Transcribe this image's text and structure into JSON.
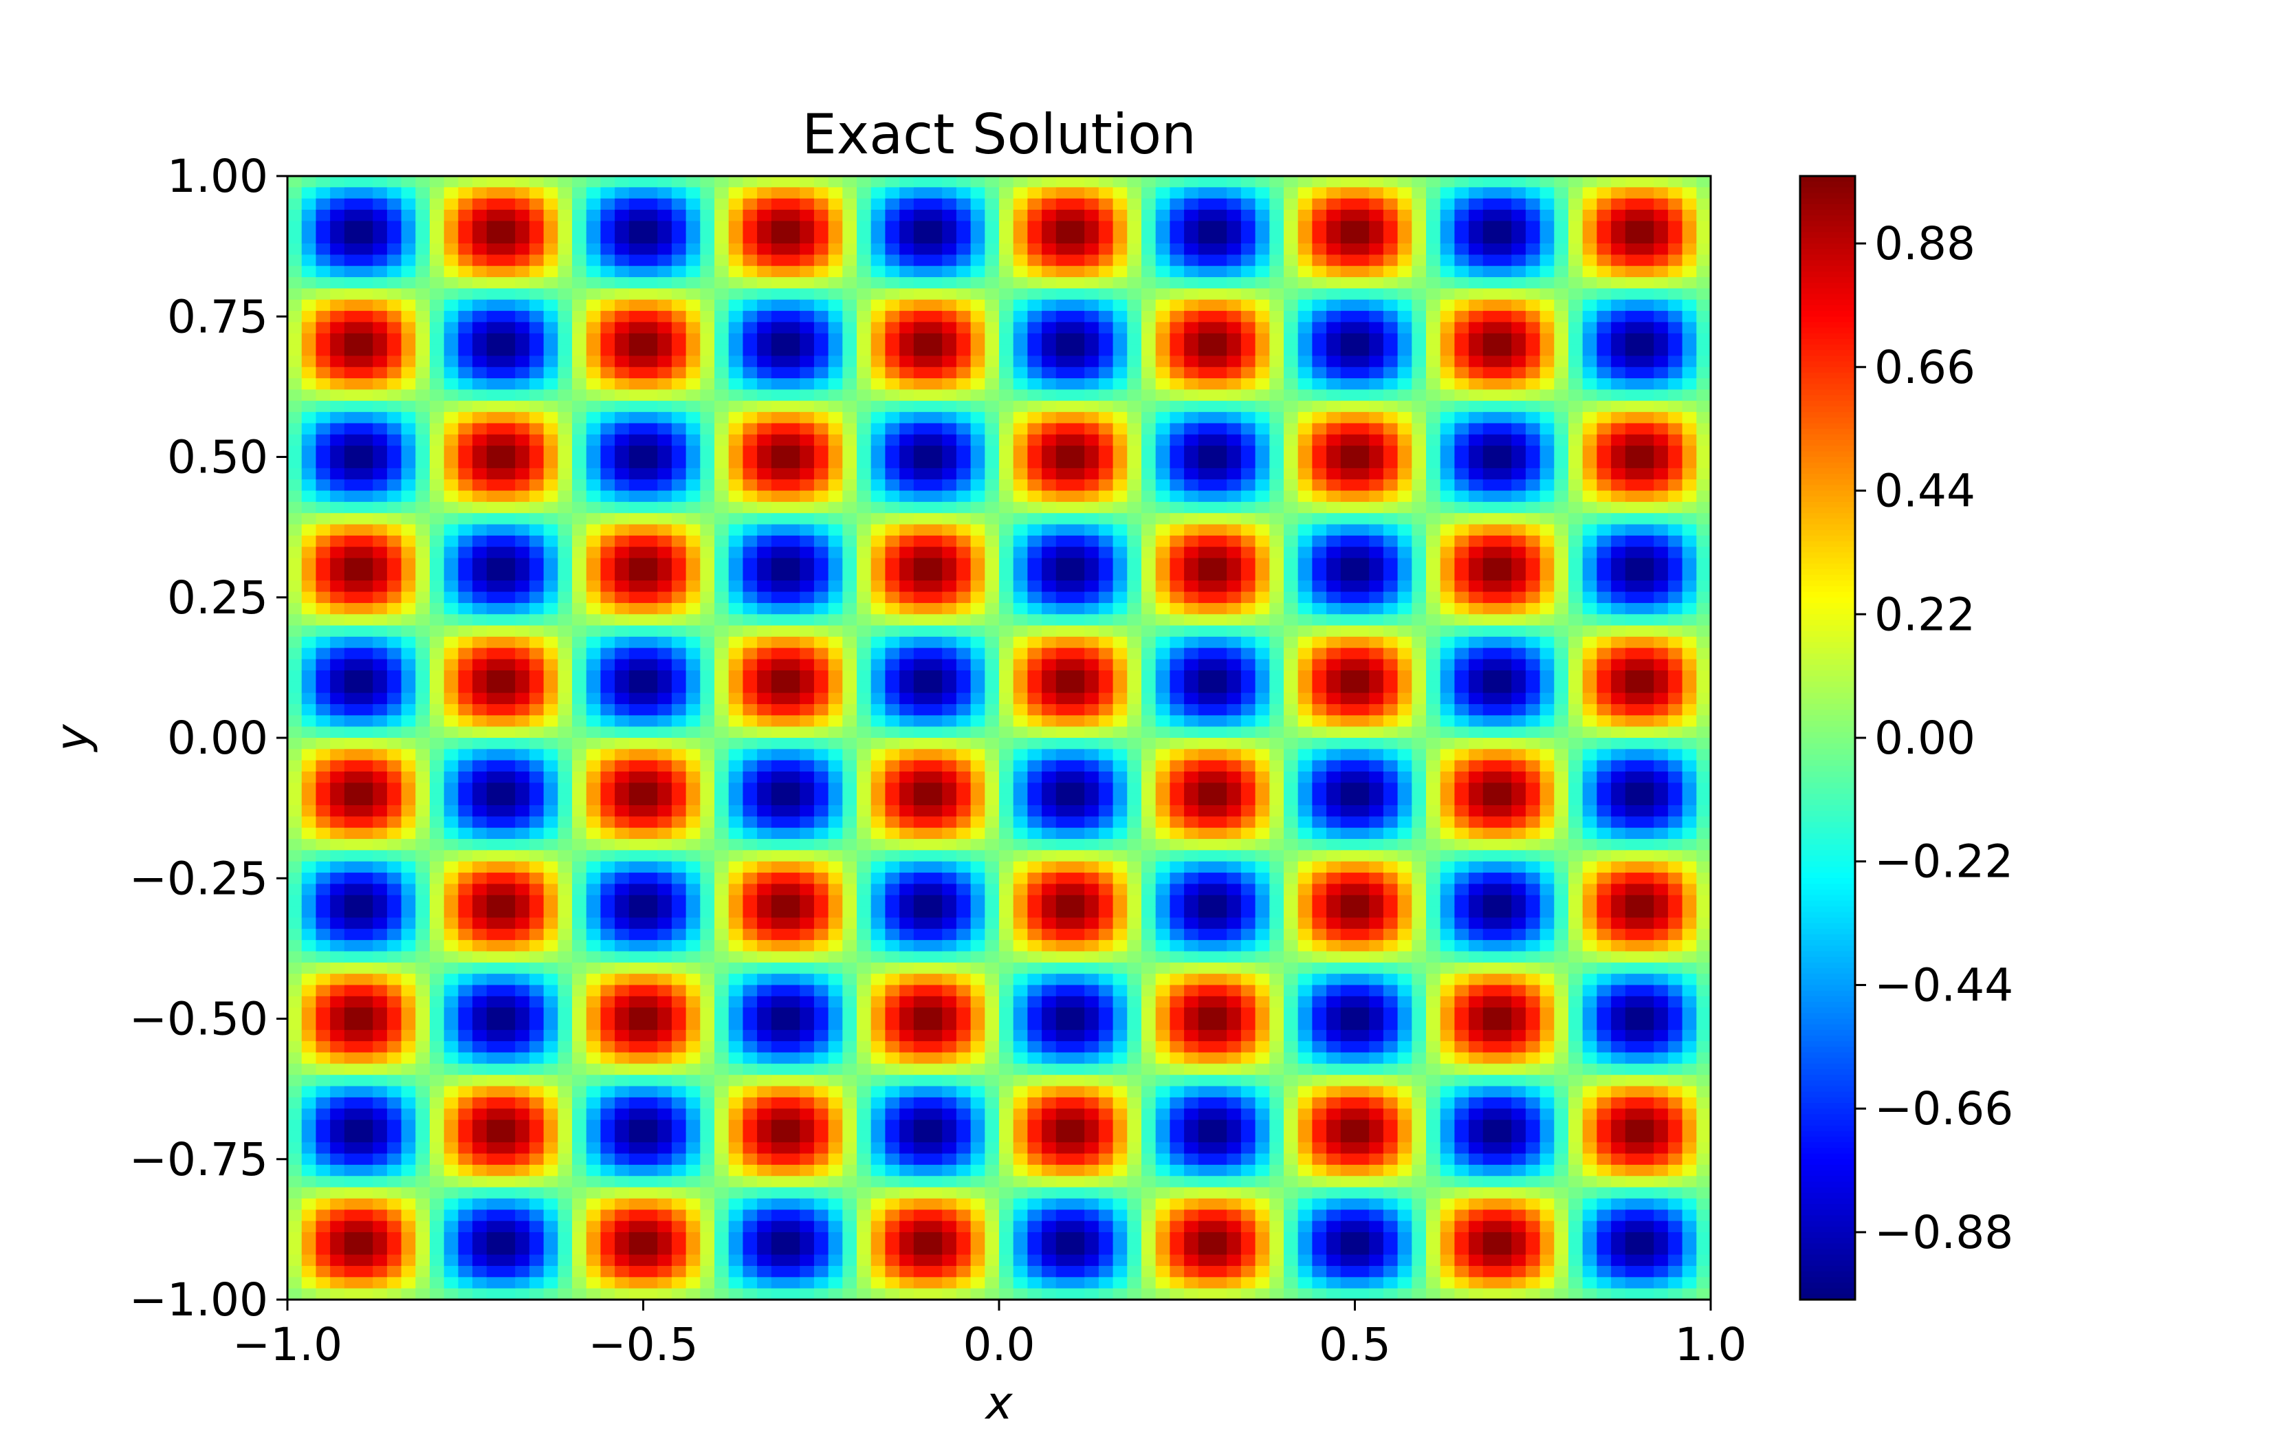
{
  "chart_data": {
    "type": "heatmap",
    "title": "Exact Solution",
    "xlabel": "x",
    "ylabel": "y",
    "xlim": [
      -1.0,
      1.0
    ],
    "ylim": [
      -1.0,
      1.0
    ],
    "colormap": "jet",
    "function": "sin(5πx)·sin(5πy)",
    "color_range": [
      -1.0,
      1.0
    ],
    "x_ticks": [
      {
        "value": -1.0,
        "label": "−1.0"
      },
      {
        "value": -0.5,
        "label": "−0.5"
      },
      {
        "value": 0.0,
        "label": "0.0"
      },
      {
        "value": 0.5,
        "label": "0.5"
      },
      {
        "value": 1.0,
        "label": "1.0"
      }
    ],
    "y_ticks": [
      {
        "value": 1.0,
        "label": "1.00"
      },
      {
        "value": 0.75,
        "label": "0.75"
      },
      {
        "value": 0.5,
        "label": "0.50"
      },
      {
        "value": 0.25,
        "label": "0.25"
      },
      {
        "value": 0.0,
        "label": "0.00"
      },
      {
        "value": -0.25,
        "label": "−0.25"
      },
      {
        "value": -0.5,
        "label": "−0.50"
      },
      {
        "value": -0.75,
        "label": "−0.75"
      },
      {
        "value": -1.0,
        "label": "−1.00"
      }
    ],
    "colorbar_ticks": [
      {
        "value": 0.88,
        "label": "0.88"
      },
      {
        "value": 0.66,
        "label": "0.66"
      },
      {
        "value": 0.44,
        "label": "0.44"
      },
      {
        "value": 0.22,
        "label": "0.22"
      },
      {
        "value": 0.0,
        "label": "0.00"
      },
      {
        "value": -0.22,
        "label": "−0.22"
      },
      {
        "value": -0.44,
        "label": "−0.44"
      },
      {
        "value": -0.66,
        "label": "−0.66"
      },
      {
        "value": -0.88,
        "label": "−0.88"
      }
    ],
    "grid": false
  }
}
